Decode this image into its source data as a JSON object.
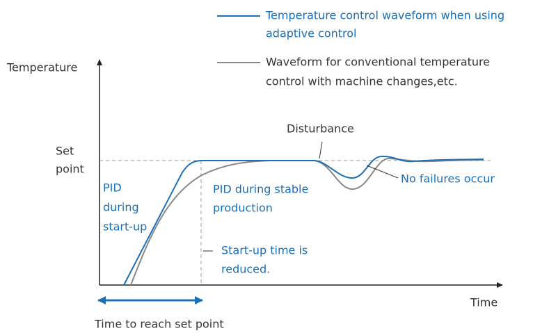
{
  "legend": [
    {
      "lines": [
        "Temperature control waveform when using",
        "adaptive control"
      ]
    },
    {
      "lines": [
        "Waveform for conventional temperature",
        "control with machine changes,etc."
      ]
    }
  ],
  "y_axis_label": "Temperature",
  "x_axis_label": "Time",
  "set_point_label": [
    "Set",
    "point"
  ],
  "disturbance_label": "Disturbance",
  "startup_pid_label": [
    "PID",
    "during",
    "start-up"
  ],
  "stable_pid_label": [
    "PID during stable",
    "production"
  ],
  "startup_time_label": [
    "Start-up time is",
    "reduced."
  ],
  "no_failures_label": "No failures occur",
  "time_to_set_point_label": "Time to reach set point"
}
